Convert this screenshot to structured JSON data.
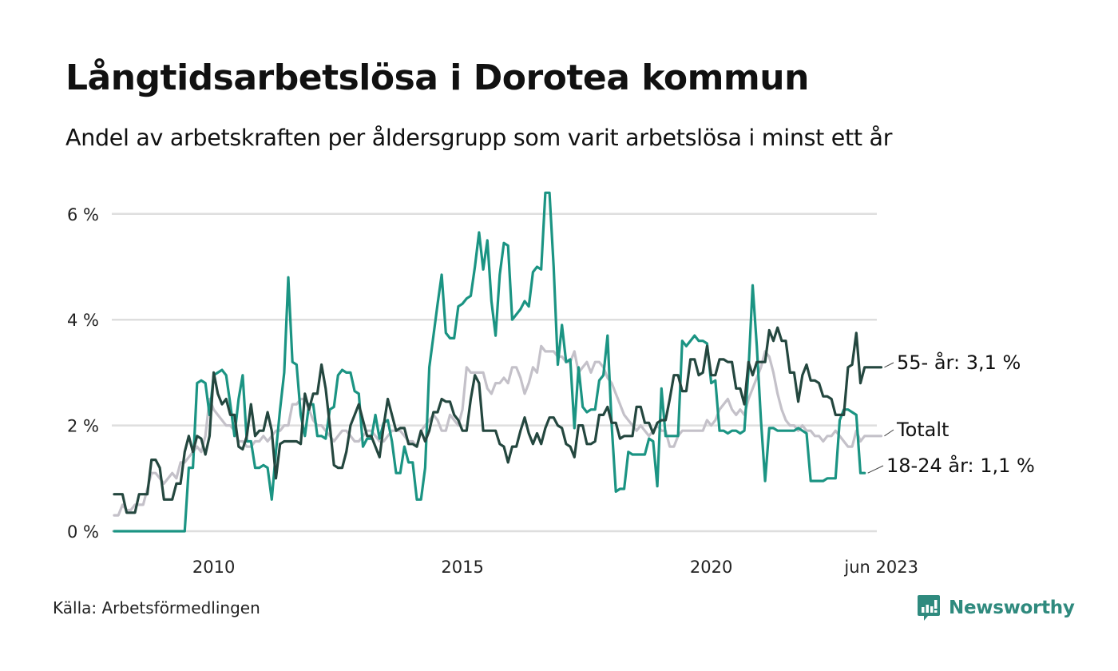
{
  "header": {
    "title": "Långtidsarbetslösa i Dorotea kommun",
    "subtitle": "Andel av arbetskraften per åldersgrupp som varit arbetslösa i minst ett år"
  },
  "footer": {
    "source": "Källa: Arbetsförmedlingen",
    "brand": "Newsworthy",
    "brand_icon": "bar-chart-speech-bubble-icon"
  },
  "colors": {
    "total": "#c4c1c9",
    "age_55": "#24473f",
    "age_18_24": "#1b9483",
    "grid": "#dedede",
    "brand": "#2f8a7e"
  },
  "chart_data": {
    "type": "line",
    "title": "Långtidsarbetslösa i Dorotea kommun",
    "subtitle": "Andel av arbetskraften per åldersgrupp som varit arbetslösa i minst ett år",
    "xlabel": "",
    "ylabel": "",
    "x_start": "2008-01",
    "x_end": "2023-06",
    "frequency": "monthly",
    "x_ticks": [
      {
        "label": "2010",
        "year": 2010.0
      },
      {
        "label": "2015",
        "year": 2015.0
      },
      {
        "label": "2020",
        "year": 2020.0
      },
      {
        "label": "jun 2023",
        "year": 2023.42
      }
    ],
    "y_ticks": [
      {
        "label": "0 %",
        "value": 0
      },
      {
        "label": "2 %",
        "value": 2
      },
      {
        "label": "4 %",
        "value": 4
      },
      {
        "label": "6 %",
        "value": 6
      }
    ],
    "ylim": [
      0,
      6.6
    ],
    "grid": true,
    "legend": "direct-labels-right",
    "series": [
      {
        "name": "Totalt",
        "label": "Totalt",
        "color_key": "total",
        "values": [
          0.3,
          0.3,
          0.5,
          0.4,
          0.4,
          0.5,
          0.5,
          0.5,
          0.8,
          1.1,
          1.1,
          1.0,
          0.9,
          1.0,
          1.1,
          1.0,
          1.3,
          1.3,
          1.4,
          1.5,
          1.6,
          1.5,
          1.8,
          2.5,
          2.3,
          2.2,
          2.1,
          2.0,
          2.0,
          1.9,
          1.7,
          1.7,
          1.6,
          1.6,
          1.7,
          1.7,
          1.8,
          1.7,
          1.8,
          1.9,
          1.9,
          2.0,
          2.0,
          2.4,
          2.4,
          2.5,
          2.5,
          2.3,
          2.1,
          2.0,
          2.0,
          1.9,
          1.8,
          1.7,
          1.8,
          1.9,
          1.9,
          1.8,
          1.7,
          1.7,
          1.8,
          1.9,
          1.9,
          1.8,
          1.7,
          1.7,
          1.8,
          1.9,
          1.9,
          1.9,
          1.8,
          1.7,
          1.7,
          1.6,
          1.9,
          2.0,
          2.1,
          2.2,
          2.1,
          1.9,
          1.9,
          2.2,
          2.1,
          2.0,
          2.3,
          3.1,
          3.0,
          3.0,
          3.0,
          3.0,
          2.7,
          2.6,
          2.8,
          2.8,
          2.9,
          2.8,
          3.1,
          3.1,
          2.9,
          2.6,
          2.8,
          3.1,
          3.0,
          3.5,
          3.4,
          3.4,
          3.4,
          3.3,
          3.3,
          3.2,
          3.2,
          3.4,
          3.0,
          3.1,
          3.2,
          3.0,
          3.2,
          3.2,
          3.1,
          2.9,
          2.8,
          2.6,
          2.4,
          2.2,
          2.1,
          2.0,
          1.9,
          2.0,
          1.9,
          1.8,
          1.9,
          2.0,
          1.9,
          1.9,
          1.6,
          1.6,
          1.8,
          1.9,
          1.9,
          1.9,
          1.9,
          1.9,
          1.9,
          2.1,
          2.0,
          2.1,
          2.3,
          2.4,
          2.5,
          2.3,
          2.2,
          2.3,
          2.2,
          2.5,
          2.7,
          2.9,
          3.1,
          3.4,
          3.3,
          3.0,
          2.6,
          2.3,
          2.1,
          2.0,
          2.0,
          1.9,
          2.0,
          1.9,
          1.9,
          1.8,
          1.8,
          1.7,
          1.8,
          1.8,
          1.9,
          1.8,
          1.7,
          1.6,
          1.6,
          1.9,
          1.7,
          1.8,
          1.8,
          1.8,
          1.8,
          1.8
        ]
      },
      {
        "name": "55- år",
        "label": "55- år: 3,1 %",
        "color_key": "age_55",
        "values": [
          0.7,
          0.7,
          0.7,
          0.35,
          0.35,
          0.35,
          0.7,
          0.7,
          0.7,
          1.35,
          1.35,
          1.2,
          0.6,
          0.6,
          0.6,
          0.9,
          0.9,
          1.5,
          1.8,
          1.5,
          1.8,
          1.75,
          1.45,
          1.8,
          3.0,
          2.6,
          2.4,
          2.5,
          2.2,
          2.2,
          1.6,
          1.55,
          1.8,
          2.4,
          1.8,
          1.9,
          1.9,
          2.25,
          1.9,
          1.0,
          1.65,
          1.7,
          1.7,
          1.7,
          1.7,
          1.65,
          2.6,
          2.3,
          2.6,
          2.6,
          3.15,
          2.7,
          2.0,
          1.25,
          1.2,
          1.2,
          1.5,
          2.0,
          2.2,
          2.4,
          2.1,
          1.8,
          1.8,
          1.6,
          1.4,
          2.0,
          2.5,
          2.2,
          1.9,
          1.95,
          1.95,
          1.65,
          1.65,
          1.6,
          1.9,
          1.7,
          1.9,
          2.25,
          2.25,
          2.5,
          2.45,
          2.45,
          2.2,
          2.1,
          1.9,
          1.9,
          2.5,
          2.95,
          2.8,
          1.9,
          1.9,
          1.9,
          1.9,
          1.65,
          1.6,
          1.3,
          1.6,
          1.6,
          1.9,
          2.15,
          1.85,
          1.65,
          1.85,
          1.65,
          1.95,
          2.15,
          2.15,
          2.0,
          1.95,
          1.65,
          1.6,
          1.4,
          2.0,
          2.0,
          1.65,
          1.65,
          1.7,
          2.2,
          2.2,
          2.35,
          2.05,
          2.05,
          1.75,
          1.8,
          1.8,
          1.8,
          2.35,
          2.35,
          2.05,
          2.05,
          1.85,
          2.05,
          2.1,
          2.1,
          2.5,
          2.95,
          2.95,
          2.65,
          2.65,
          3.25,
          3.25,
          2.95,
          3.0,
          3.5,
          2.95,
          2.95,
          3.25,
          3.25,
          3.2,
          3.2,
          2.7,
          2.7,
          2.4,
          3.2,
          2.95,
          3.2,
          3.2,
          3.2,
          3.8,
          3.6,
          3.85,
          3.6,
          3.6,
          3.0,
          3.0,
          2.45,
          2.95,
          3.15,
          2.85,
          2.85,
          2.8,
          2.55,
          2.55,
          2.5,
          2.2,
          2.2,
          2.2,
          3.1,
          3.15,
          3.75,
          2.8,
          3.1,
          3.1,
          3.1,
          3.1,
          3.1
        ]
      },
      {
        "name": "18-24 år",
        "label": "18-24 år: 1,1 %",
        "color_key": "age_18_24",
        "values": [
          0,
          0,
          0,
          0,
          0,
          0,
          0,
          0,
          0,
          0,
          0,
          0,
          0,
          0,
          0,
          0,
          0,
          0,
          1.2,
          1.2,
          2.8,
          2.85,
          2.8,
          2.2,
          2.95,
          3.0,
          3.05,
          2.95,
          2.4,
          1.8,
          2.5,
          2.95,
          1.7,
          1.7,
          1.2,
          1.2,
          1.25,
          1.2,
          0.6,
          1.5,
          2.3,
          3.0,
          4.8,
          3.2,
          3.15,
          2.2,
          1.8,
          2.4,
          2.4,
          1.8,
          1.8,
          1.75,
          2.3,
          2.35,
          2.95,
          3.05,
          3.0,
          3.0,
          2.65,
          2.6,
          1.6,
          1.75,
          1.75,
          2.2,
          1.75,
          2.05,
          2.1,
          1.7,
          1.1,
          1.1,
          1.6,
          1.3,
          1.3,
          0.6,
          0.6,
          1.2,
          3.1,
          3.7,
          4.3,
          4.85,
          3.75,
          3.65,
          3.65,
          4.25,
          4.3,
          4.4,
          4.45,
          5.0,
          5.65,
          4.95,
          5.5,
          4.35,
          3.7,
          4.85,
          5.45,
          5.4,
          4.0,
          4.1,
          4.2,
          4.35,
          4.25,
          4.9,
          5.0,
          4.95,
          6.4,
          6.4,
          5.0,
          3.15,
          3.9,
          3.2,
          3.25,
          1.95,
          3.1,
          2.35,
          2.25,
          2.3,
          2.3,
          2.85,
          2.95,
          3.7,
          2.0,
          0.75,
          0.8,
          0.8,
          1.5,
          1.45,
          1.45,
          1.45,
          1.45,
          1.75,
          1.7,
          0.85,
          2.7,
          1.8,
          1.8,
          1.8,
          1.8,
          3.6,
          3.5,
          3.6,
          3.7,
          3.6,
          3.6,
          3.55,
          2.8,
          2.85,
          1.9,
          1.9,
          1.85,
          1.9,
          1.9,
          1.85,
          1.9,
          3.05,
          4.65,
          3.5,
          2.1,
          0.95,
          1.95,
          1.95,
          1.9,
          1.9,
          1.9,
          1.9,
          1.9,
          1.95,
          1.9,
          1.85,
          0.95,
          0.95,
          0.95,
          0.95,
          1.0,
          1.0,
          1.0,
          2.1,
          2.3,
          2.3,
          2.25,
          2.2,
          1.1,
          1.1
        ]
      }
    ]
  }
}
